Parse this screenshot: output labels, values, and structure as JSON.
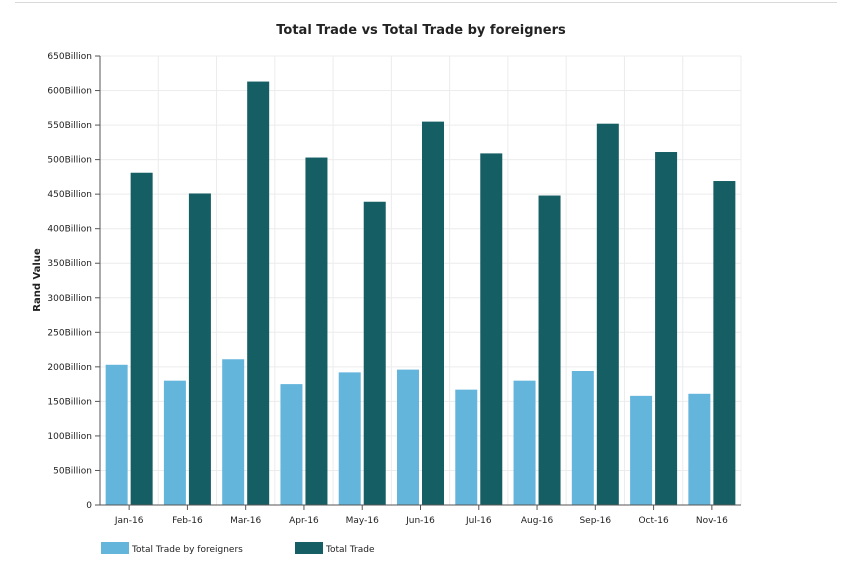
{
  "chart_data": {
    "type": "bar",
    "title": "Total Trade vs Total Trade by foreigners",
    "xlabel": "",
    "ylabel": "Rand Value",
    "categories": [
      "Jan-16",
      "Feb-16",
      "Mar-16",
      "Apr-16",
      "May-16",
      "Jun-16",
      "Jul-16",
      "Aug-16",
      "Sep-16",
      "Oct-16",
      "Nov-16"
    ],
    "series": [
      {
        "name": "Total Trade by foreigners",
        "color": "#63b5dc",
        "values": [
          203,
          180,
          211,
          175,
          192,
          196,
          167,
          180,
          194,
          158,
          161
        ]
      },
      {
        "name": "Total Trade",
        "color": "#155e63",
        "values": [
          481,
          451,
          613,
          503,
          439,
          555,
          509,
          448,
          552,
          511,
          469
        ]
      }
    ],
    "ylim": [
      0,
      650
    ],
    "yticks": [
      "0",
      "50Billion",
      "100Billion",
      "150Billion",
      "200Billion",
      "250Billion",
      "300Billion",
      "350Billion",
      "400Billion",
      "450Billion",
      "500Billion",
      "550Billion",
      "600Billion",
      "650Billion"
    ],
    "grid": true,
    "legend_position": "bottom-left"
  }
}
